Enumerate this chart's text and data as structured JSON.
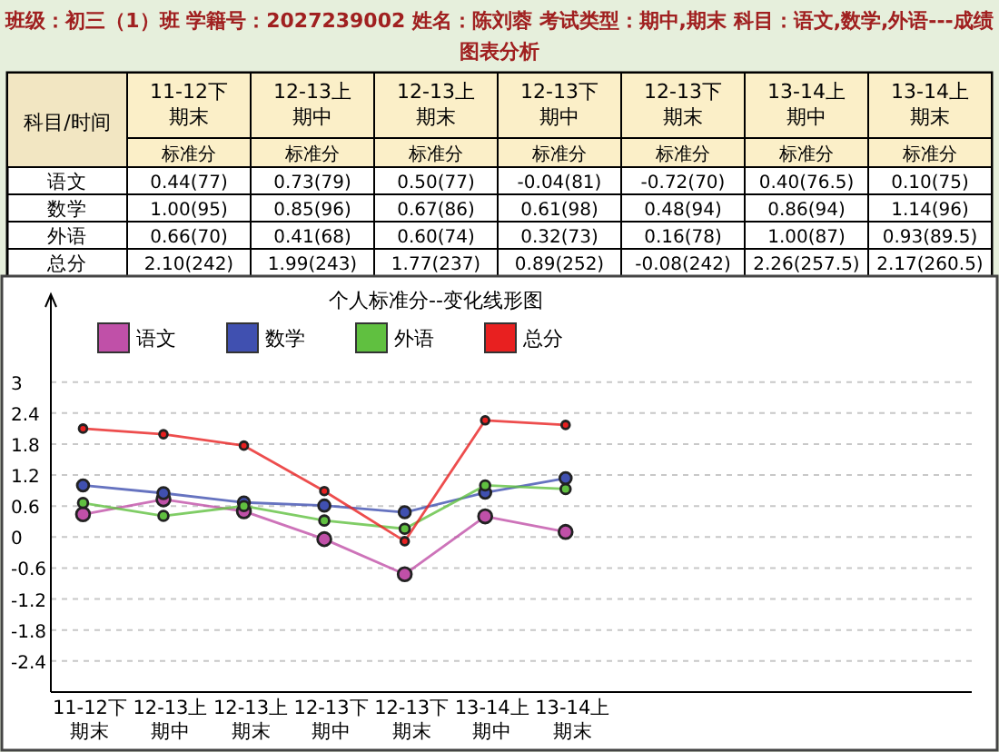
{
  "chart_data": [
    {
      "type": "other",
      "title": "班级：初三（1）班 学籍号：2027239002 姓名：陈刘蓉 考试类型：期中,期末 科目：语文,数学,外语---成绩图表分析",
      "annotations": [
        "科目/时间",
        "标准分"
      ],
      "categories": [
        "11-12下期末",
        "12-13上期中",
        "12-13上期末",
        "12-13下期中",
        "12-13下期末",
        "13-14上期中",
        "13-14上期末"
      ],
      "y_categories": [
        "语文",
        "数学",
        "外语",
        "总分"
      ],
      "cell_labels": [
        [
          "0.44(77)",
          "0.73(79)",
          "0.50(77)",
          "-0.04(81)",
          "-0.72(70)",
          "0.40(76.5)",
          "0.10(75)"
        ],
        [
          "1.00(95)",
          "0.85(96)",
          "0.67(86)",
          "0.61(98)",
          "0.48(94)",
          "0.86(94)",
          "1.14(96)"
        ],
        [
          "0.66(70)",
          "0.41(68)",
          "0.60(74)",
          "0.32(73)",
          "0.16(78)",
          "1.00(87)",
          "0.93(89.5)"
        ],
        [
          "2.10(242)",
          "1.99(243)",
          "1.77(237)",
          "0.89(252)",
          "-0.08(242)",
          "2.26(257.5)",
          "2.17(260.5)"
        ]
      ]
    },
    {
      "type": "line",
      "title": "个人标准分--变化线形图",
      "categories": [
        "11-12下期末",
        "12-13上期中",
        "12-13上期末",
        "12-13下期中",
        "12-13下期末",
        "13-14上期中",
        "13-14上期末"
      ],
      "series": [
        {
          "name": "语文",
          "color": "#c050a8",
          "values": [
            0.44,
            0.73,
            0.5,
            -0.04,
            -0.72,
            0.4,
            0.1
          ]
        },
        {
          "name": "数学",
          "color": "#4050b0",
          "values": [
            1.0,
            0.85,
            0.67,
            0.61,
            0.48,
            0.86,
            1.14
          ]
        },
        {
          "name": "外语",
          "color": "#60c040",
          "values": [
            0.66,
            0.41,
            0.6,
            0.32,
            0.16,
            1.0,
            0.93
          ]
        },
        {
          "name": "总分",
          "color": "#e82020",
          "values": [
            2.1,
            1.99,
            1.77,
            0.89,
            -0.08,
            2.26,
            2.17
          ]
        }
      ],
      "ylim": [
        -3,
        4.7
      ],
      "yticks": [
        -2.4,
        -1.8,
        -1.2,
        -0.6,
        0,
        0.6,
        1.2,
        1.8,
        2.4,
        3
      ],
      "grid": "y",
      "legend": "top left",
      "marker": "circle",
      "line_style": "solid"
    }
  ]
}
